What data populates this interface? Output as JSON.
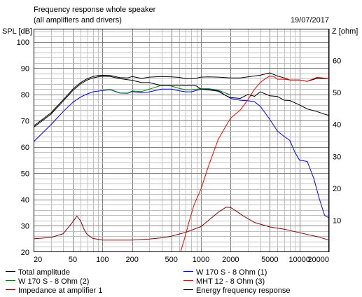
{
  "chart_data": {
    "type": "line",
    "title": "Frequency response whole speaker",
    "subtitle": "(all amplifiers and drivers)",
    "date": "19/07/2017",
    "ylabel_left": "SPL [dB]",
    "ylabel_right": "Z [ohm]",
    "x_scale": "log",
    "xlim": [
      20,
      20000
    ],
    "ylim_left": [
      20,
      105
    ],
    "ylim_right": [
      0,
      70
    ],
    "grid": true,
    "x_tick_labels": [
      "20",
      "50",
      "100",
      "200",
      "500",
      "1000",
      "2000",
      "5000",
      "10000",
      "20000"
    ],
    "y_left_ticks": [
      "100",
      "90",
      "80",
      "70",
      "60",
      "50",
      "40",
      "30",
      "20"
    ],
    "y_right_ticks": [
      "60",
      "50",
      "40",
      "30",
      "20",
      "10"
    ],
    "series": [
      {
        "name": "Total amplitude",
        "color": "#000000",
        "axis": "left",
        "x": [
          20,
          30,
          40,
          50,
          60,
          70,
          80,
          90,
          100,
          120,
          150,
          180,
          200,
          250,
          300,
          400,
          500,
          600,
          700,
          800,
          900,
          1000,
          1200,
          1500,
          2000,
          2500,
          3000,
          4000,
          5000,
          6000,
          7000,
          8000,
          10000,
          12000,
          15000,
          20000
        ],
        "y": [
          68,
          73,
          78,
          82,
          84.5,
          86,
          86.8,
          87.2,
          87.3,
          87.2,
          86.4,
          86.3,
          86.8,
          86.1,
          86.6,
          86.8,
          86.7,
          86.5,
          86,
          86,
          86.2,
          86.6,
          86.7,
          86.6,
          86.3,
          86.3,
          86.7,
          87.3,
          88.2,
          87,
          86.3,
          85.5,
          85.5,
          85,
          86.1,
          86
        ]
      },
      {
        "name": "W 170 S - 8 Ohm (1)",
        "color": "#0000ff",
        "axis": "left",
        "x": [
          20,
          30,
          40,
          50,
          60,
          70,
          80,
          100,
          120,
          150,
          180,
          200,
          250,
          300,
          400,
          500,
          600,
          700,
          800,
          1000,
          1200,
          1500,
          2000,
          2500,
          3000,
          3500,
          4000,
          5000,
          6000,
          7000,
          8000,
          9000,
          10000,
          12000,
          14000,
          16000,
          18000,
          20000
        ],
        "y": [
          62,
          68.5,
          73.5,
          77,
          79,
          80.2,
          81,
          81.5,
          81.8,
          80.5,
          80.4,
          81.1,
          80.6,
          81,
          82,
          82,
          81.4,
          81,
          81,
          82,
          82,
          81.4,
          78.5,
          77.8,
          77.6,
          77.2,
          75.5,
          70.5,
          66,
          64,
          62.5,
          58,
          55,
          54.5,
          48,
          40,
          34,
          33
        ]
      },
      {
        "name": "W 170 S - 8 Ohm (2)",
        "color": "#008000",
        "axis": "left",
        "x": [
          100,
          120,
          150,
          180,
          200,
          250,
          300,
          400,
          500,
          600,
          700,
          800,
          1000,
          1200,
          1500,
          2000
        ],
        "y": [
          81.6,
          81.9,
          80.6,
          80.5,
          81.3,
          81.1,
          82,
          83.5,
          83.2,
          82.3,
          81.8,
          81.7,
          82.2,
          82.2,
          81.6,
          79.8
        ]
      },
      {
        "name": "MHT 12 - 8 Ohm (3)",
        "color": "#ff0000",
        "axis": "left",
        "x": [
          620,
          680,
          750,
          850,
          1000,
          1200,
          1500,
          2000,
          2500,
          3000,
          3500,
          4000,
          4500,
          5000,
          5500,
          6000,
          7000,
          8000,
          10000,
          12000,
          15000,
          20000
        ],
        "y": [
          20,
          25,
          31,
          38,
          44,
          53,
          63,
          71,
          74,
          78,
          82,
          84.5,
          86,
          87,
          86.8,
          85.8,
          85.8,
          85.5,
          85.5,
          85,
          86.5,
          86
        ]
      },
      {
        "name": "Impedance at amplifier 1",
        "color": "#800000",
        "axis": "right",
        "x": [
          20,
          30,
          40,
          50,
          55,
          60,
          65,
          70,
          80,
          100,
          150,
          200,
          300,
          400,
          500,
          700,
          1000,
          1200,
          1500,
          1800,
          2000,
          2300,
          2700,
          3500,
          5000,
          7000,
          10000,
          15000,
          20000
        ],
        "y": [
          4.2,
          4.6,
          5.8,
          9.5,
          11.3,
          9.8,
          7.2,
          5.5,
          4.3,
          3.8,
          3.8,
          3.8,
          4.1,
          4.5,
          5,
          6.2,
          8,
          10,
          12.5,
          14.1,
          14,
          12.8,
          11.3,
          9.3,
          7.9,
          7.2,
          6.1,
          4.9,
          3.8
        ]
      },
      {
        "name": "Energy frequency response",
        "color": "#000000",
        "axis": "left",
        "x": [
          20,
          30,
          40,
          50,
          60,
          70,
          80,
          90,
          100,
          120,
          150,
          200,
          250,
          300,
          400,
          500,
          600,
          700,
          800,
          900,
          1000,
          1200,
          1500,
          1800,
          2000,
          2500,
          3000,
          3500,
          4000,
          5000,
          6000,
          7000,
          8000,
          10000,
          12000,
          15000,
          18000,
          20000
        ],
        "y": [
          67.5,
          72.5,
          77.5,
          81.5,
          84,
          85.5,
          86.3,
          86.7,
          86.9,
          86.8,
          86,
          85.4,
          84.5,
          84.5,
          83.3,
          83.4,
          83.5,
          83.3,
          83.5,
          83.2,
          82,
          81.7,
          81.2,
          79.5,
          78.8,
          78.5,
          80,
          79.3,
          81,
          79.5,
          79.2,
          77.8,
          77.7,
          76,
          74.5,
          73.5,
          72.5,
          72
        ]
      }
    ],
    "legend_position": "bottom"
  },
  "legend": [
    {
      "label": "Total amplitude",
      "color": "#000000"
    },
    {
      "label": "W 170 S - 8 Ohm (1)",
      "color": "#0000ff"
    },
    {
      "label": "W 170 S - 8 Ohm (2)",
      "color": "#008000"
    },
    {
      "label": "MHT 12 - 8 Ohm (3)",
      "color": "#ff0000"
    },
    {
      "label": "Impedance at amplifier 1",
      "color": "#800000"
    },
    {
      "label": "Energy frequency response",
      "color": "#000000"
    }
  ]
}
